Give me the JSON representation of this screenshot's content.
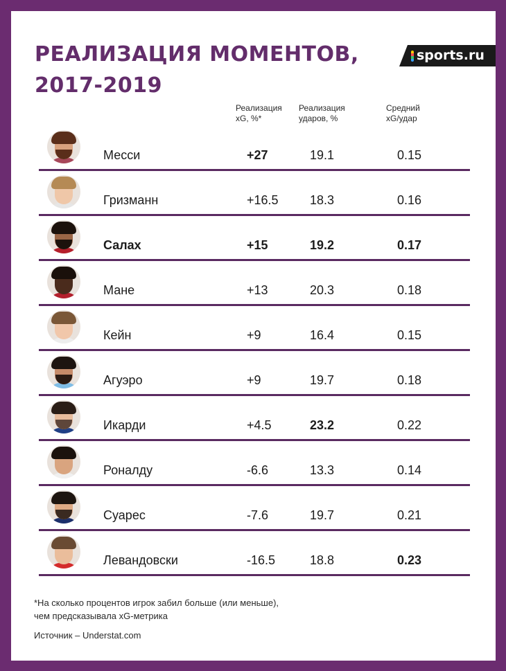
{
  "title": {
    "line1": "РЕАЛИЗАЦИЯ МОМЕНТОВ,",
    "line2": "2017-2019"
  },
  "brand": {
    "logo_text": "sports.ru"
  },
  "columns": {
    "xg": [
      "Реализация",
      "xG, %*"
    ],
    "shots": [
      "Реализация",
      "ударов, %"
    ],
    "avg": [
      "Средний",
      "xG/удар"
    ]
  },
  "rows": [
    {
      "name": "Месси",
      "xg": "+27",
      "shots": "19.1",
      "avg": "0.15",
      "bold": {
        "name": false,
        "xg": true,
        "shots": false,
        "avg": false
      },
      "avatar": {
        "skin": "#d9a27e",
        "hair": "#5a2e1a",
        "beard": "#5a2e1a",
        "shirt": "#a7475a"
      }
    },
    {
      "name": "Гризманн",
      "xg": "+16.5",
      "shots": "18.3",
      "avg": "0.16",
      "bold": {
        "name": false,
        "xg": false,
        "shots": false,
        "avg": false
      },
      "avatar": {
        "skin": "#efc7a8",
        "hair": "#b58a55",
        "beard": "",
        "shirt": "#e6e6e6"
      }
    },
    {
      "name": "Салах",
      "xg": "+15",
      "shots": "19.2",
      "avg": "0.17",
      "bold": {
        "name": true,
        "xg": true,
        "shots": true,
        "avg": true
      },
      "avatar": {
        "skin": "#9b6646",
        "hair": "#1c120c",
        "beard": "#1c120c",
        "shirt": "#b51f2b"
      }
    },
    {
      "name": "Мане",
      "xg": "+13",
      "shots": "20.3",
      "avg": "0.18",
      "bold": {
        "name": false,
        "xg": false,
        "shots": false,
        "avg": false
      },
      "avatar": {
        "skin": "#4a2b1c",
        "hair": "#1a100b",
        "beard": "",
        "shirt": "#b31f2c"
      }
    },
    {
      "name": "Кейн",
      "xg": "+9",
      "shots": "16.4",
      "avg": "0.15",
      "bold": {
        "name": false,
        "xg": false,
        "shots": false,
        "avg": false
      },
      "avatar": {
        "skin": "#f1c7aa",
        "hair": "#7a5737",
        "beard": "",
        "shirt": "#ededed"
      }
    },
    {
      "name": "Агуэро",
      "xg": "+9",
      "shots": "19.7",
      "avg": "0.18",
      "bold": {
        "name": false,
        "xg": false,
        "shots": false,
        "avg": false
      },
      "avatar": {
        "skin": "#c58b6a",
        "hair": "#1d1410",
        "beard": "#2a1b14",
        "shirt": "#7fbde6"
      }
    },
    {
      "name": "Икарди",
      "xg": "+4.5",
      "shots": "23.2",
      "avg": "0.22",
      "bold": {
        "name": false,
        "xg": false,
        "shots": true,
        "avg": false
      },
      "avatar": {
        "skin": "#e8bc9c",
        "hair": "#2a1d16",
        "beard": "#5e463a",
        "shirt": "#1f3f86"
      }
    },
    {
      "name": "Роналду",
      "xg": "-6.6",
      "shots": "13.3",
      "avg": "0.14",
      "bold": {
        "name": false,
        "xg": false,
        "shots": false,
        "avg": false
      },
      "avatar": {
        "skin": "#d9a47f",
        "hair": "#1b120d",
        "beard": "",
        "shirt": "#f0f0f0"
      }
    },
    {
      "name": "Суарес",
      "xg": "-7.6",
      "shots": "19.7",
      "avg": "0.21",
      "bold": {
        "name": false,
        "xg": false,
        "shots": false,
        "avg": false
      },
      "avatar": {
        "skin": "#deaa85",
        "hair": "#1d1510",
        "beard": "#3a2a20",
        "shirt": "#1b2f6b"
      }
    },
    {
      "name": "Левандовски",
      "xg": "-16.5",
      "shots": "18.8",
      "avg": "0.23",
      "bold": {
        "name": false,
        "xg": false,
        "shots": false,
        "avg": true
      },
      "avatar": {
        "skin": "#eabd9b",
        "hair": "#6a4b33",
        "beard": "",
        "shirt": "#d42b2b"
      }
    }
  ],
  "footnote": {
    "line1": "*На сколько процентов игрок забил больше (или меньше),",
    "line2": "чем предсказывала xG-метрика"
  },
  "source": "Источник – Understat.com",
  "colors": {
    "frame": "#6b2c70",
    "title": "#632d6b",
    "divider": "#5a2a61"
  }
}
